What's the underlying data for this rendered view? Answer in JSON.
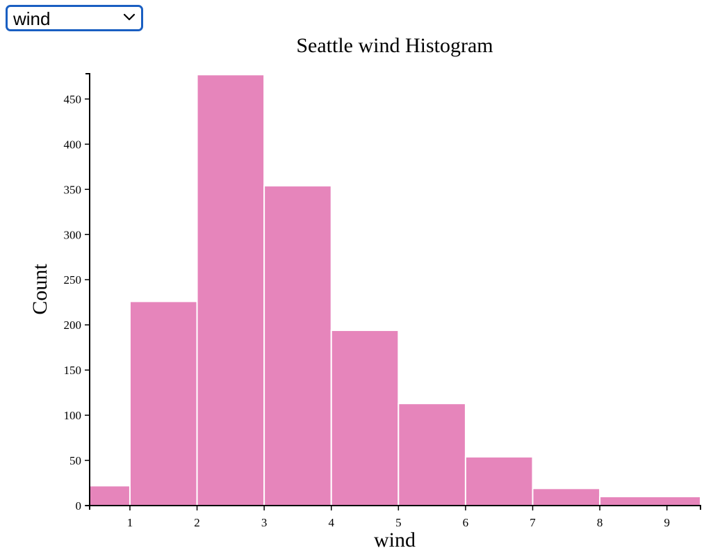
{
  "selector": {
    "selected_value": "wind"
  },
  "colors": {
    "bar_fill": "#e685bb",
    "bar_stroke": "#ffffff",
    "axis": "#000000",
    "dropdown_border": "#1a5fc2"
  },
  "chart_data": {
    "type": "bar",
    "title": "Seattle wind Histogram",
    "xlabel": "wind",
    "ylabel": "Count",
    "bins": [
      {
        "x0": 0.4,
        "x1": 1,
        "count": 22
      },
      {
        "x0": 1,
        "x1": 2,
        "count": 226
      },
      {
        "x0": 2,
        "x1": 3,
        "count": 477
      },
      {
        "x0": 3,
        "x1": 4,
        "count": 354
      },
      {
        "x0": 4,
        "x1": 5,
        "count": 194
      },
      {
        "x0": 5,
        "x1": 6,
        "count": 113
      },
      {
        "x0": 6,
        "x1": 7,
        "count": 54
      },
      {
        "x0": 7,
        "x1": 8,
        "count": 19
      },
      {
        "x0": 8,
        "x1": 9.5,
        "count": 10
      }
    ],
    "xlim": [
      0.4,
      9.5
    ],
    "ylim": [
      0,
      478
    ],
    "xticks": [
      "1",
      "2",
      "3",
      "4",
      "5",
      "6",
      "7",
      "8",
      "9"
    ],
    "yticks": [
      "0",
      "50",
      "100",
      "150",
      "200",
      "250",
      "300",
      "350",
      "400",
      "450"
    ],
    "grid": false,
    "legend": "none"
  }
}
